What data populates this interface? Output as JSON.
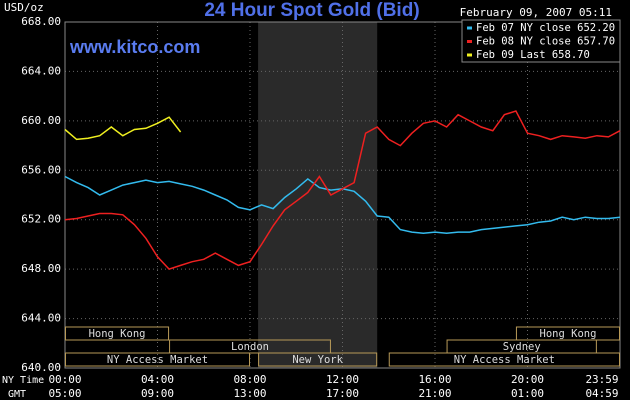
{
  "chart_data": {
    "type": "line",
    "title": "24 Hour Spot Gold (Bid)",
    "subtitle": "February 09, 2007 05:11",
    "watermark": "www.kitco.com",
    "y_unit": "USD/oz",
    "xlabel": "NY Time",
    "x2label": "GMT",
    "xlim": [
      0,
      24
    ],
    "xticks": [
      {
        "value": 0,
        "label": "00:00"
      },
      {
        "value": 4,
        "label": "04:00"
      },
      {
        "value": 8,
        "label": "08:00"
      },
      {
        "value": 12,
        "label": "12:00"
      },
      {
        "value": 16,
        "label": "16:00"
      },
      {
        "value": 20,
        "label": "20:00"
      },
      {
        "value": 24,
        "label": "23:59"
      }
    ],
    "x2ticks": [
      {
        "value": 0,
        "label": "05:00"
      },
      {
        "value": 4,
        "label": "09:00"
      },
      {
        "value": 8,
        "label": "13:00"
      },
      {
        "value": 12,
        "label": "17:00"
      },
      {
        "value": 16,
        "label": "21:00"
      },
      {
        "value": 20,
        "label": "01:00"
      },
      {
        "value": 24,
        "label": "04:59"
      }
    ],
    "ylim": [
      640,
      668
    ],
    "yticks": [
      {
        "value": 640,
        "label": "640.00"
      },
      {
        "value": 644,
        "label": "644.00"
      },
      {
        "value": 648,
        "label": "648.00"
      },
      {
        "value": 652,
        "label": "652.00"
      },
      {
        "value": 656,
        "label": "656.00"
      },
      {
        "value": 660,
        "label": "660.00"
      },
      {
        "value": 664,
        "label": "664.00"
      },
      {
        "value": 668,
        "label": "668.00"
      }
    ],
    "grid": true,
    "legend": "top-right",
    "x": [
      0,
      0.5,
      1,
      1.5,
      2,
      2.5,
      3,
      3.5,
      4,
      4.5,
      5,
      5.5,
      6,
      6.5,
      7,
      7.5,
      8,
      8.5,
      9,
      9.5,
      10,
      10.5,
      11,
      11.5,
      12,
      12.5,
      13,
      13.5,
      14,
      14.5,
      15,
      15.5,
      16,
      16.5,
      17,
      17.5,
      18,
      18.5,
      19,
      19.5,
      20,
      20.5,
      21,
      21.5,
      22,
      22.5,
      23,
      23.5,
      24
    ],
    "series": [
      {
        "name": "Feb 07 NY close 652.20",
        "color": "#33bbee",
        "values": [
          655.5,
          655.0,
          654.6,
          654.0,
          654.4,
          654.8,
          655.0,
          655.2,
          655.0,
          655.1,
          654.9,
          654.7,
          654.4,
          654.0,
          653.6,
          653.0,
          652.8,
          653.2,
          652.9,
          653.8,
          654.5,
          655.3,
          654.6,
          654.4,
          654.5,
          654.3,
          653.5,
          652.3,
          652.2,
          651.2,
          651.0,
          650.9,
          651.0,
          650.9,
          651.0,
          651.0,
          651.2,
          651.3,
          651.4,
          651.5,
          651.6,
          651.8,
          651.9,
          652.2,
          652.0,
          652.2,
          652.1,
          652.1,
          652.2
        ]
      },
      {
        "name": "Feb 08 NY close 657.70",
        "color": "#ee2020",
        "values": [
          652.0,
          652.1,
          652.3,
          652.5,
          652.5,
          652.4,
          651.6,
          650.5,
          649.0,
          648.0,
          648.3,
          648.6,
          648.8,
          649.3,
          648.8,
          648.3,
          648.6,
          650.0,
          651.5,
          652.8,
          653.5,
          654.2,
          655.5,
          654.0,
          654.5,
          655.0,
          659.0,
          659.5,
          658.5,
          658.0,
          659.0,
          659.8,
          660.0,
          659.5,
          660.5,
          660.0,
          659.5,
          659.2,
          660.5,
          660.8,
          659.0,
          658.8,
          658.5,
          658.8,
          658.7,
          658.6,
          658.8,
          658.7,
          659.2
        ]
      },
      {
        "name": "Feb 09 Last 658.70",
        "color": "#f0f020",
        "values": [
          659.3,
          658.5,
          658.6,
          658.8,
          659.5,
          658.8,
          659.3,
          659.4,
          659.8,
          660.3,
          659.1,
          null,
          null,
          null,
          null,
          null,
          null,
          null,
          null,
          null,
          null,
          null,
          null,
          null,
          null,
          null,
          null,
          null,
          null,
          null,
          null,
          null,
          null,
          null,
          null,
          null,
          null,
          null,
          null,
          null,
          null,
          null,
          null,
          null,
          null,
          null,
          null,
          null,
          null
        ]
      }
    ],
    "session_rows": [
      [
        {
          "label": "Hong Kong",
          "start": 0,
          "end": 4.5
        },
        {
          "label": "Hong Kong",
          "start": 19.5,
          "end": 24
        }
      ],
      [
        {
          "label": "London",
          "start": 4.5,
          "end": 11.5
        },
        {
          "label": "Sydney",
          "start": 16.5,
          "end": 23
        }
      ],
      [
        {
          "label": "NY Access Market",
          "start": 0,
          "end": 8
        },
        {
          "label": "New York",
          "start": 8.35,
          "end": 13.5,
          "shaded": true
        },
        {
          "label": "NY Access Market",
          "start": 14,
          "end": 24
        }
      ]
    ]
  }
}
